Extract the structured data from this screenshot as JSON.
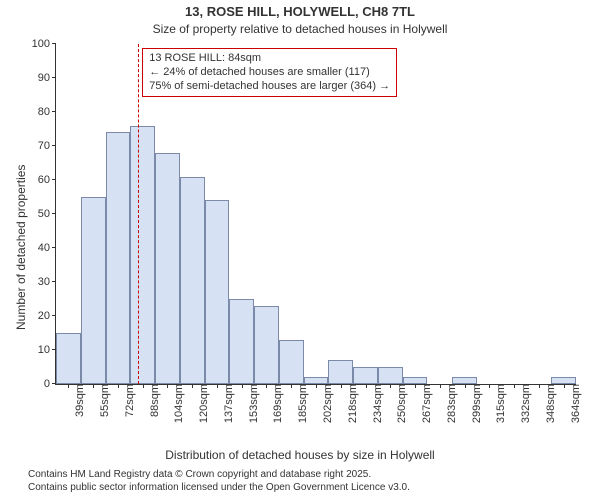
{
  "title": "13, ROSE HILL, HOLYWELL, CH8 7TL",
  "subtitle": "Size of property relative to detached houses in Holywell",
  "ylabel": "Number of detached properties",
  "xlabel": "Distribution of detached houses by size in Holywell",
  "footer_line1": "Contains HM Land Registry data © Crown copyright and database right 2025.",
  "footer_line2": "Contains public sector information licensed under the Open Government Licence v3.0.",
  "chart": {
    "type": "histogram",
    "ylim": [
      0,
      100
    ],
    "ytick_step": 10,
    "bar_fill": "#d6e1f4",
    "bar_stroke": "#7a8aa8",
    "ref_color": "#cc0000",
    "text_color": "#333333",
    "background": "#ffffff",
    "title_fontsize": 13,
    "subtitle_fontsize": 12,
    "axis_label_fontsize": 12,
    "tick_fontsize": 11,
    "callout_fontsize": 11,
    "footer_fontsize": 10,
    "categories": [
      "39sqm",
      "55sqm",
      "72sqm",
      "88sqm",
      "104sqm",
      "120sqm",
      "137sqm",
      "153sqm",
      "169sqm",
      "185sqm",
      "202sqm",
      "218sqm",
      "234sqm",
      "250sqm",
      "267sqm",
      "283sqm",
      "299sqm",
      "315sqm",
      "332sqm",
      "348sqm",
      "364sqm"
    ],
    "values": [
      15,
      55,
      74,
      76,
      68,
      61,
      54,
      25,
      23,
      13,
      2,
      7,
      5,
      5,
      2,
      0,
      2,
      0,
      0,
      0,
      2
    ],
    "ref_index": 2.82,
    "callout": {
      "line1": "13 ROSE HILL: 84sqm",
      "line2": "← 24% of detached houses are smaller (117)",
      "line3": "75% of semi-detached houses are larger (364) →"
    }
  }
}
